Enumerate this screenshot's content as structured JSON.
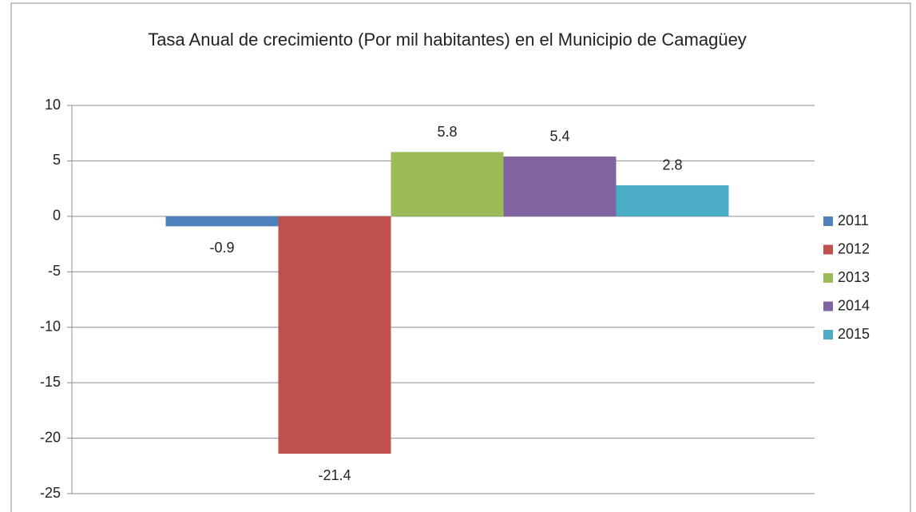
{
  "chart_data": {
    "type": "bar",
    "title": "Tasa Anual de crecimiento (Por mil habitantes) en el Municipio de Camagüey",
    "categories": [
      null
    ],
    "series": [
      {
        "name": "2011",
        "color": "#4f81bd",
        "values": [
          -0.9
        ]
      },
      {
        "name": "2012",
        "color": "#c0504d",
        "values": [
          -21.4
        ]
      },
      {
        "name": "2013",
        "color": "#9bbb59",
        "values": [
          5.8
        ]
      },
      {
        "name": "2014",
        "color": "#8064a2",
        "values": [
          5.4
        ]
      },
      {
        "name": "2015",
        "color": "#4bacc6",
        "values": [
          2.8
        ]
      }
    ],
    "ylim": [
      -25,
      10
    ],
    "yticks": [
      -25,
      -20,
      -15,
      -10,
      -5,
      0,
      5,
      10
    ],
    "grid": true,
    "legend": "right"
  }
}
